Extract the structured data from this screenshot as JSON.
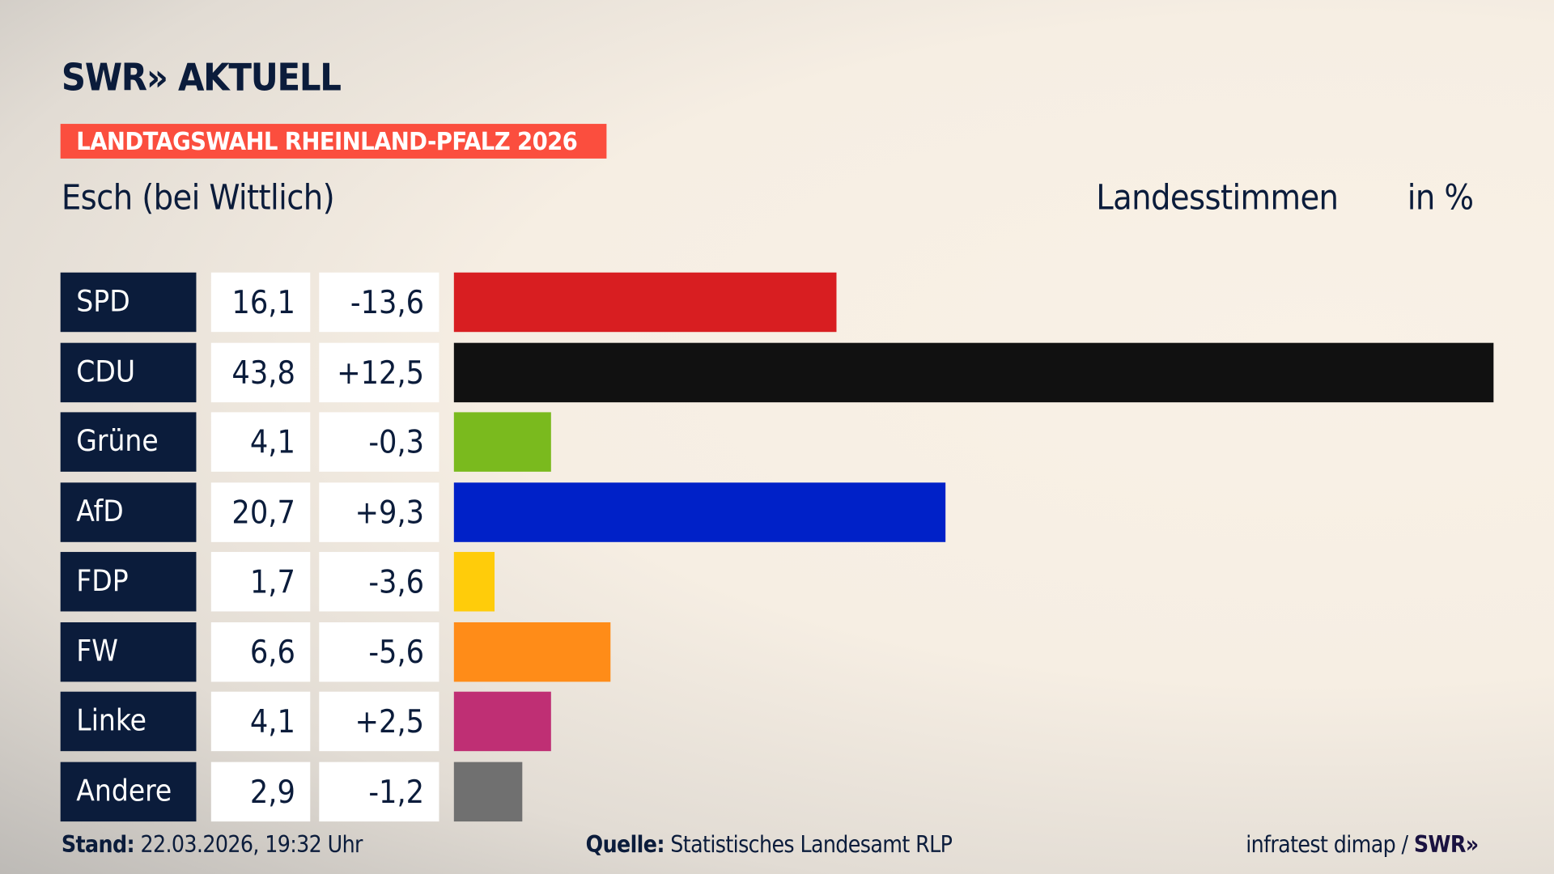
{
  "header": {
    "logo": "SWR» AKTUELL",
    "badge": "LANDTAGSWAHL RHEINLAND-PFALZ 2026",
    "location": "Esch (bei Wittlich)",
    "measure": "Landesstimmen",
    "unit": "in %"
  },
  "chart_data": {
    "type": "bar",
    "orientation": "horizontal",
    "categories": [
      "SPD",
      "CDU",
      "Grüne",
      "AfD",
      "FDP",
      "FW",
      "Linke",
      "Andere"
    ],
    "values": [
      16.1,
      43.8,
      4.1,
      20.7,
      1.7,
      6.6,
      4.1,
      2.9
    ],
    "value_labels": [
      "16,1",
      "43,8",
      "4,1",
      "20,7",
      "1,7",
      "6,6",
      "4,1",
      "2,9"
    ],
    "changes": [
      -13.6,
      12.5,
      -0.3,
      9.3,
      -3.6,
      -5.6,
      2.5,
      -1.2
    ],
    "change_labels": [
      "-13,6",
      "+12,5",
      "-0,3",
      "+9,3",
      "-3,6",
      "-5,6",
      "+2,5",
      "-1,2"
    ],
    "colors": [
      "#d81e21",
      "#111111",
      "#7aba1e",
      "#0021c8",
      "#ffcc0a",
      "#ff8c18",
      "#bf2f74",
      "#707070"
    ],
    "xlim": [
      0,
      43.8
    ],
    "grid": false
  },
  "footer": {
    "stand_label": "Stand:",
    "stand_value": "22.03.2026, 19:32 Uhr",
    "source_label": "Quelle:",
    "source_value": "Statistisches Landesamt RLP",
    "credit": "infratest dimap /",
    "credit_logo": "SWR»"
  }
}
